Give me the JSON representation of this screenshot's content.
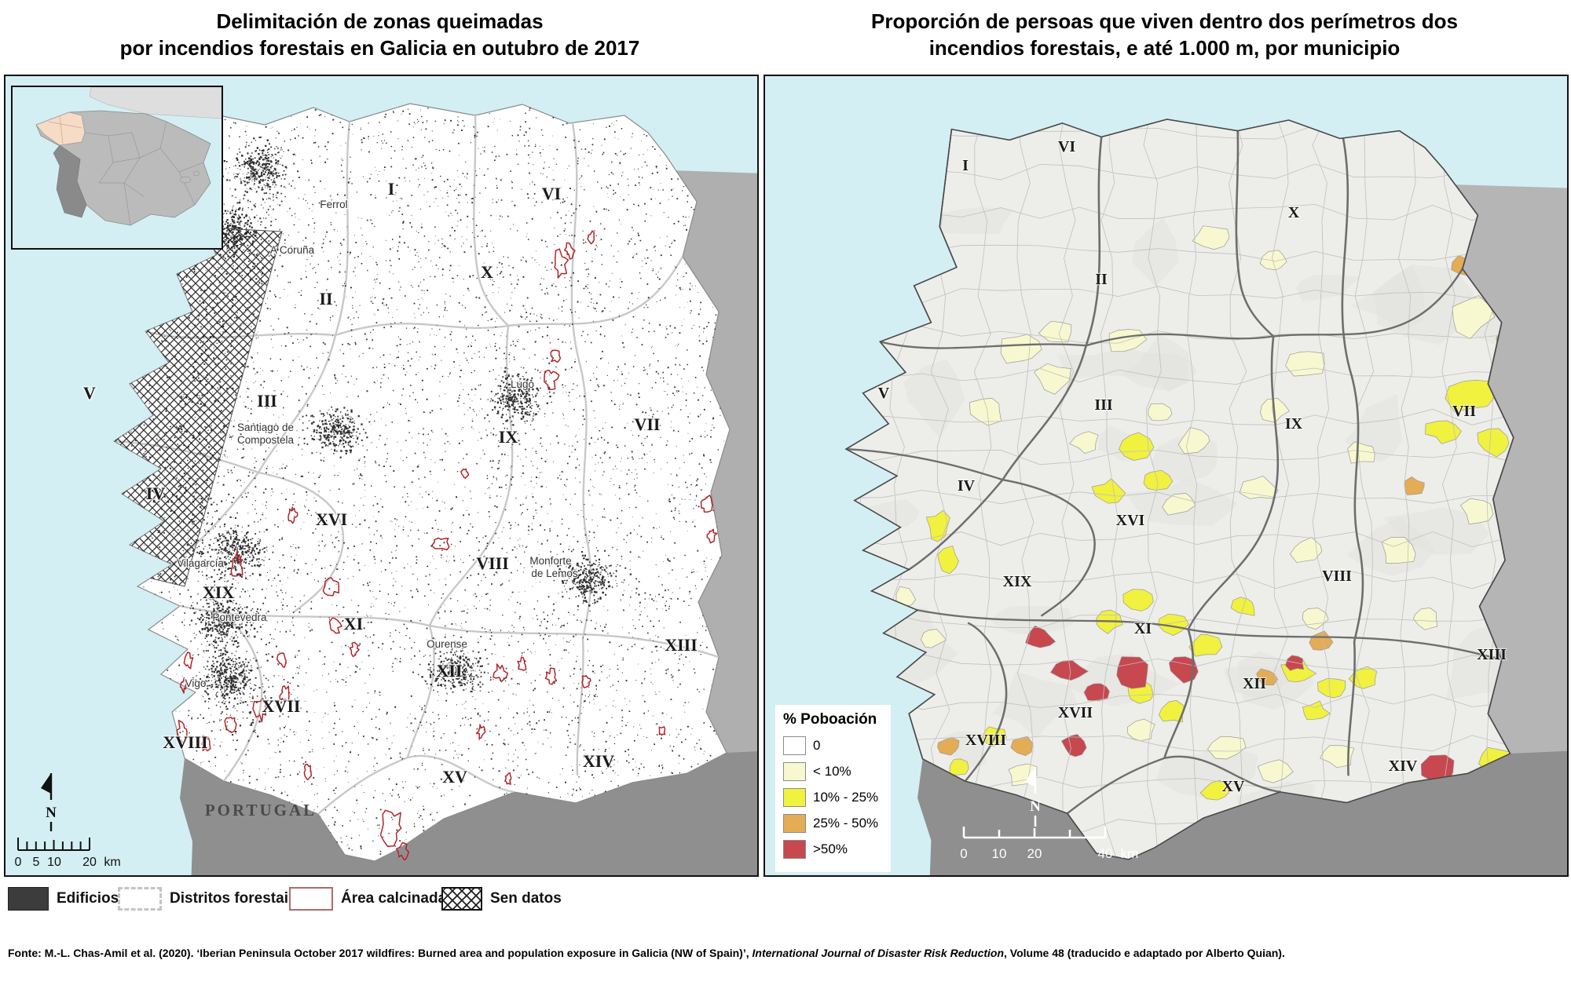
{
  "left_map": {
    "title_line1": "Delimitación de zonas queimadas",
    "title_line2": "por incendios forestais en Galicia en outubro de 2017",
    "cities": [
      {
        "l1": "Ferrol"
      },
      {
        "l1": "A Coruña"
      },
      {
        "l1": "Lugo"
      },
      {
        "l1": "Santiago de",
        "l2": "Compostela"
      },
      {
        "l1": "Vilagarcía"
      },
      {
        "l1": "Pontevedra"
      },
      {
        "l1": "Vigo"
      },
      {
        "l1": "Ourense"
      },
      {
        "l1": "Monforte",
        "l2": "de Lemos"
      }
    ],
    "country_label": "PORTUGAL",
    "north_label": "N",
    "scale": {
      "t0": "0",
      "t1": "5",
      "t2": "10",
      "t3": "20",
      "unit": "km"
    }
  },
  "right_map": {
    "title_line1": "Proporción de persoas que viven dentro dos perímetros dos",
    "title_line2": "incendios forestais, e até 1.000 m, por municipio",
    "legend": {
      "title": "% Poboación",
      "items": [
        {
          "label": "0",
          "color": "#FFFFFF"
        },
        {
          "label": "< 10%",
          "color": "#F8F8D0"
        },
        {
          "label": "10% - 25%",
          "color": "#F1F13F"
        },
        {
          "label": "25% - 50%",
          "color": "#E3AC55"
        },
        {
          "label": ">50%",
          "color": "#C7484E"
        }
      ]
    },
    "north_label": "N",
    "scale": {
      "t0": "0",
      "t1": "10",
      "t2": "20",
      "t3": "40",
      "unit": "km"
    }
  },
  "regions": [
    "I",
    "II",
    "III",
    "IV",
    "V",
    "VI",
    "VII",
    "VIII",
    "IX",
    "X",
    "XI",
    "XII",
    "XIII",
    "XIV",
    "XV",
    "XVI",
    "XVII",
    "XVIII",
    "XIX"
  ],
  "bottom_legend": {
    "items": [
      {
        "label": "Edificios"
      },
      {
        "label": "Distritos forestais"
      },
      {
        "label": "Área calcinada"
      },
      {
        "label": "Sen datos"
      }
    ]
  },
  "footer": {
    "text_before": "Fonte: M.-L. Chas-Amil et al. (2020). ‘Iberian Peninsula October 2017 wildfires: Burned area and population exposure in Galicia (NW of Spain)’, ",
    "journal": "International Journal of Disaster Risk Reduction",
    "text_after": ", Volume 48 (traducido e adaptado por Alberto Quian)."
  },
  "colors": {
    "sea": "#D3EFF4",
    "galicia_left": "#FFFFFF",
    "galicia_right": "#EDEDEA",
    "neighbor_left": "#AFAFAF",
    "neighbor_right": "#B5B5B5",
    "portugal": "#8F8F8F",
    "burn": "#B2252A",
    "building": "#2F2F2F",
    "district_left": "#C8C8C8",
    "district_right": "#6E6E6E",
    "inset_spain": "#BBBBBB",
    "inset_portugal": "#8A8A8A",
    "inset_galicia": "#F6DBC6"
  }
}
